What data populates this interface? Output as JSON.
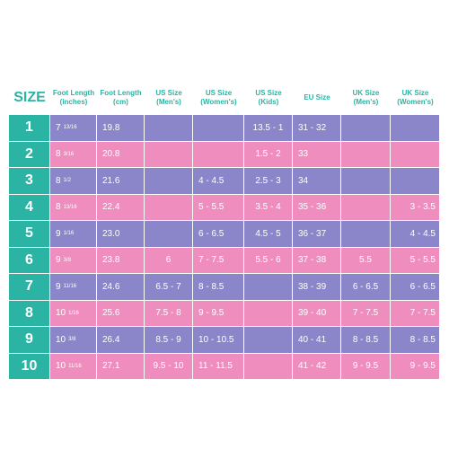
{
  "header": {
    "size": "SIZE",
    "foot_in_1": "Foot Length",
    "foot_in_2": "(inches)",
    "foot_cm_1": "Foot Length",
    "foot_cm_2": "(cm)",
    "us_men_1": "US Size",
    "us_men_2": "(Men's)",
    "us_women_1": "US Size",
    "us_women_2": "(Women's)",
    "us_kids_1": "US Size",
    "us_kids_2": "(Kids)",
    "eu": "EU Size",
    "uk_men_1": "UK Size",
    "uk_men_2": "(Men's)",
    "uk_women_1": "UK Size",
    "uk_women_2": "(Women's)"
  },
  "rows": [
    {
      "size": "1",
      "in": "7",
      "in_frac": "13/16",
      "cm": "19.8",
      "us_men": "",
      "us_women": "",
      "us_kids": "13.5 - 1",
      "eu": "31 - 32",
      "uk_men": "",
      "uk_women": ""
    },
    {
      "size": "2",
      "in": "8",
      "in_frac": "3/16",
      "cm": "20.8",
      "us_men": "",
      "us_women": "",
      "us_kids": "1.5 - 2",
      "eu": "33",
      "uk_men": "",
      "uk_women": ""
    },
    {
      "size": "3",
      "in": "8",
      "in_frac": "1/2",
      "cm": "21.6",
      "us_men": "",
      "us_women": "4 - 4.5",
      "us_kids": "2.5 - 3",
      "eu": "34",
      "uk_men": "",
      "uk_women": ""
    },
    {
      "size": "4",
      "in": "8",
      "in_frac": "13/16",
      "cm": "22.4",
      "us_men": "",
      "us_women": "5 - 5.5",
      "us_kids": "3.5 - 4",
      "eu": "35 - 36",
      "uk_men": "",
      "uk_women": "3 - 3.5"
    },
    {
      "size": "5",
      "in": "9",
      "in_frac": "1/16",
      "cm": "23.0",
      "us_men": "",
      "us_women": "6 - 6.5",
      "us_kids": "4.5 - 5",
      "eu": "36 - 37",
      "uk_men": "",
      "uk_women": "4 - 4.5"
    },
    {
      "size": "6",
      "in": "9",
      "in_frac": "3/8",
      "cm": "23.8",
      "us_men": "6",
      "us_women": "7 - 7.5",
      "us_kids": "5.5 - 6",
      "eu": "37 - 38",
      "uk_men": "5.5",
      "uk_women": "5 - 5.5"
    },
    {
      "size": "7",
      "in": "9",
      "in_frac": "11/16",
      "cm": "24.6",
      "us_men": "6.5 - 7",
      "us_women": "8 - 8.5",
      "us_kids": "",
      "eu": "38 - 39",
      "uk_men": "6 - 6.5",
      "uk_women": "6 - 6.5"
    },
    {
      "size": "8",
      "in": "10",
      "in_frac": "1/16",
      "cm": "25.6",
      "us_men": "7.5 - 8",
      "us_women": "9 - 9.5",
      "us_kids": "",
      "eu": "39 - 40",
      "uk_men": "7 - 7.5",
      "uk_women": "7 - 7.5"
    },
    {
      "size": "9",
      "in": "10",
      "in_frac": "3/8",
      "cm": "26.4",
      "us_men": "8.5 - 9",
      "us_women": "10 - 10.5",
      "us_kids": "",
      "eu": "40 - 41",
      "uk_men": "8 - 8.5",
      "uk_women": "8 - 8.5"
    },
    {
      "size": "10",
      "in": "10",
      "in_frac": "11/16",
      "cm": "27.1",
      "us_men": "9.5 - 10",
      "us_women": "11 - 11.5",
      "us_kids": "",
      "eu": "41 - 42",
      "uk_men": "9 - 9.5",
      "uk_women": "9 - 9.5"
    }
  ],
  "colors": {
    "teal": "#2bb3a3",
    "purple": "#8a86c9",
    "pink": "#f08dbf"
  }
}
